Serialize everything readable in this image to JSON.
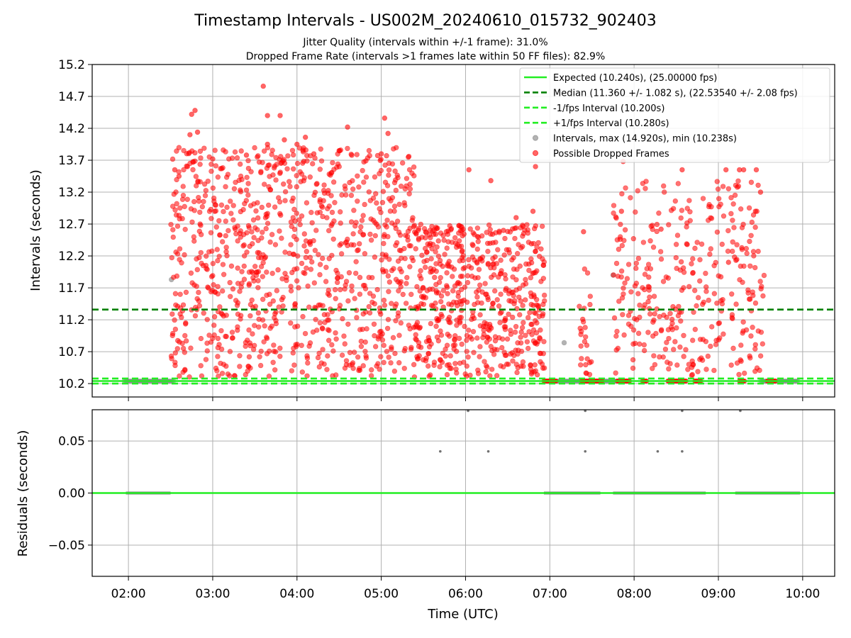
{
  "chart_data": {
    "type": "scatter",
    "title": "Timestamp Intervals - US002M_20240610_015732_902403",
    "subtitle_lines": [
      "Jitter Quality (intervals within +/-1 frame): 31.0%",
      "Dropped Frame Rate (intervals >1 frames late within 50 FF files): 82.9%"
    ],
    "xlabel": "Time (UTC)",
    "x_ticks": [
      "02:00",
      "03:00",
      "04:00",
      "05:00",
      "06:00",
      "07:00",
      "08:00",
      "09:00",
      "10:00"
    ],
    "x_range_hours": [
      1.57,
      10.38
    ],
    "grid": true,
    "legend_position": "top-right",
    "panels": [
      {
        "name": "intervals",
        "ylabel": "Intervals (seconds)",
        "ylim": [
          9.99,
          15.2
        ],
        "y_ticks": [
          10.2,
          10.7,
          11.2,
          11.7,
          12.2,
          12.7,
          13.2,
          13.7,
          14.2,
          14.7,
          15.2
        ],
        "y_tick_labels": [
          "10.2",
          "10.7",
          "11.2",
          "11.7",
          "12.2",
          "12.7",
          "13.2",
          "13.7",
          "14.2",
          "14.7",
          "15.2"
        ],
        "reference_lines": [
          {
            "label": "Expected (10.240s), (25.00000 fps)",
            "y": 10.24,
            "color": "#22ee22",
            "style": "solid"
          },
          {
            "label": "Median (11.360 +/- 1.082 s), (22.53540 +/- 2.08 fps)",
            "y": 11.36,
            "color": "#008000",
            "style": "dashed"
          },
          {
            "label": "-1/fps Interval (10.200s)",
            "y": 10.2,
            "color": "#22ee22",
            "style": "dashed"
          },
          {
            "label": "+1/fps Interval (10.280s)",
            "y": 10.28,
            "color": "#22ee22",
            "style": "dashed"
          }
        ],
        "scatter_series": [
          {
            "label": "Intervals, max (14.920s), min (10.238s)",
            "color": "#808080",
            "points": [
              [
                2.51,
                11.83
              ],
              [
                7.17,
                10.84
              ],
              [
                7.75,
                11.9
              ]
            ],
            "baseline_segments": [
              {
                "from": 1.95,
                "to": 2.55,
                "y": 10.24
              },
              {
                "from": 6.95,
                "to": 7.95,
                "y": 10.24
              },
              {
                "from": 9.5,
                "to": 9.95,
                "y": 10.24
              }
            ]
          },
          {
            "label": "Possible Dropped Frames",
            "color": "#ff0000",
            "clusters": [
              {
                "x_from": 2.5,
                "x_to": 5.4,
                "y_from": 10.3,
                "y_to": 13.9,
                "count": 950
              },
              {
                "x_from": 5.4,
                "x_to": 6.95,
                "y_from": 10.3,
                "y_to": 12.7,
                "count": 560
              },
              {
                "x_from": 7.35,
                "x_to": 7.55,
                "y_from": 10.3,
                "y_to": 12.1,
                "count": 25
              },
              {
                "x_from": 7.75,
                "x_to": 9.55,
                "y_from": 10.3,
                "y_to": 13.4,
                "count": 330
              }
            ],
            "points": [
              [
                3.6,
                14.86
              ],
              [
                2.79,
                14.48
              ],
              [
                2.75,
                14.42
              ],
              [
                3.65,
                14.4
              ],
              [
                3.8,
                14.4
              ],
              [
                5.04,
                14.36
              ],
              [
                2.73,
                14.1
              ],
              [
                2.82,
                14.14
              ],
              [
                3.85,
                14.02
              ],
              [
                4.1,
                14.06
              ],
              [
                4.6,
                14.22
              ],
              [
                5.08,
                14.12
              ],
              [
                4.0,
                13.95
              ],
              [
                3.4,
                13.78
              ],
              [
                3.65,
                13.95
              ],
              [
                4.5,
                13.85
              ],
              [
                4.2,
                13.8
              ],
              [
                3.0,
                13.72
              ],
              [
                5.0,
                13.8
              ],
              [
                6.04,
                13.55
              ],
              [
                6.3,
                13.38
              ],
              [
                6.83,
                13.6
              ],
              [
                7.87,
                13.68
              ],
              [
                8.57,
                13.55
              ],
              [
                9.09,
                13.55
              ],
              [
                9.25,
                13.55
              ],
              [
                9.3,
                13.55
              ],
              [
                9.45,
                13.55
              ],
              [
                9.44,
                12.9
              ],
              [
                9.5,
                13.2
              ],
              [
                2.55,
                13.55
              ],
              [
                2.6,
                13.45
              ],
              [
                2.7,
                13.6
              ],
              [
                6.45,
                12.6
              ],
              [
                6.6,
                12.8
              ],
              [
                6.8,
                12.9
              ],
              [
                7.4,
                12.58
              ],
              [
                7.85,
                12.9
              ],
              [
                8.32,
                12.62
              ],
              [
                8.63,
                12.38
              ],
              [
                9.12,
                12.1
              ]
            ],
            "baseline_segments": [
              {
                "from": 6.93,
                "to": 7.08,
                "y": 10.24
              },
              {
                "from": 7.38,
                "to": 7.62,
                "y": 10.24
              },
              {
                "from": 7.8,
                "to": 7.95,
                "y": 10.24
              },
              {
                "from": 8.1,
                "to": 8.15,
                "y": 10.24
              },
              {
                "from": 8.4,
                "to": 8.62,
                "y": 10.24
              },
              {
                "from": 8.72,
                "to": 8.8,
                "y": 10.24
              },
              {
                "from": 9.25,
                "to": 9.32,
                "y": 10.24
              },
              {
                "from": 9.58,
                "to": 9.68,
                "y": 10.24
              }
            ]
          }
        ]
      },
      {
        "name": "residuals",
        "ylabel": "Residuals (seconds)",
        "ylim": [
          -0.08,
          0.08
        ],
        "y_ticks": [
          -0.05,
          0.0,
          0.05
        ],
        "y_tick_labels": [
          "−0.05",
          "0.00",
          "0.05"
        ],
        "reference_lines": [
          {
            "y": 0.0,
            "color": "#22ee22",
            "style": "solid"
          }
        ],
        "residual_points": [
          [
            5.7,
            0.04
          ],
          [
            6.27,
            0.04
          ],
          [
            7.42,
            0.04
          ],
          [
            8.28,
            0.04
          ],
          [
            8.57,
            0.04
          ],
          [
            6.03,
            0.079
          ],
          [
            7.42,
            0.079
          ],
          [
            8.57,
            0.079
          ],
          [
            9.26,
            0.079
          ]
        ],
        "zero_segments": [
          {
            "from": 1.97,
            "to": 2.5
          },
          {
            "from": 6.93,
            "to": 7.6
          },
          {
            "from": 7.75,
            "to": 8.85
          },
          {
            "from": 9.2,
            "to": 9.97
          }
        ]
      }
    ]
  }
}
